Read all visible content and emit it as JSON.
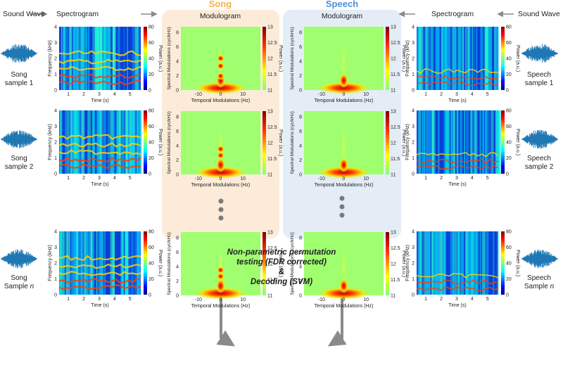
{
  "header": {
    "left_sound_wave": "Sound Wave",
    "left_spectrogram": "Spectrogram",
    "right_spectrogram": "Spectrogram",
    "right_sound_wave": "Sound Wave"
  },
  "song_panel": {
    "title": "Song",
    "subtitle": "Modulogram",
    "color": "#F5B342",
    "bg": "#FCEBD9"
  },
  "speech_panel": {
    "title": "Speech",
    "subtitle": "Modulogram",
    "color": "#4A90D9",
    "bg": "#E4ECF6"
  },
  "samples": {
    "song": [
      {
        "line1": "Song",
        "line2": "sample 1"
      },
      {
        "line1": "Song",
        "line2": "sample 2"
      },
      {
        "line1": "Song",
        "line2_prefix": "Sample ",
        "line2_italic": "n"
      }
    ],
    "speech": [
      {
        "line1": "Speech",
        "line2": "sample 1"
      },
      {
        "line1": "Speech",
        "line2": "sample 2"
      },
      {
        "line1": "Speech",
        "line2_prefix": "Sample ",
        "line2_italic": "n"
      }
    ]
  },
  "spectrogram_axes": {
    "ylabel": "Frequency (kHz)",
    "xlabel": "Time (s)",
    "yticks": [
      "0",
      "1",
      "2",
      "3",
      "4"
    ],
    "xticks": [
      "1",
      "2",
      "3",
      "4",
      "5"
    ],
    "colorbar_label": "Power (a.u.)",
    "colorbar_ticks": [
      "0",
      "20",
      "40",
      "60",
      "80"
    ]
  },
  "modulogram_axes": {
    "ylabel": "Spectral Modulations (cyc/kHz)",
    "xlabel": "Temporal Modulations (Hz)",
    "yticks": [
      "0",
      "2",
      "4",
      "6",
      "8"
    ],
    "xticks": [
      "-10",
      "0",
      "10"
    ],
    "colorbar_label": "Power (a.u.)",
    "colorbar_ticks": [
      "11",
      "11.5",
      "12",
      "12.5",
      "13"
    ]
  },
  "bottom_text": {
    "line1": "Non-parametric permutation",
    "line2": "testing (FDR corrected)",
    "line3": "&",
    "line4": "Decoding (SVM)"
  },
  "colors": {
    "arrow": "#8a8a8a",
    "wave": "#1f77b4",
    "dots": "#7a7a7a"
  }
}
